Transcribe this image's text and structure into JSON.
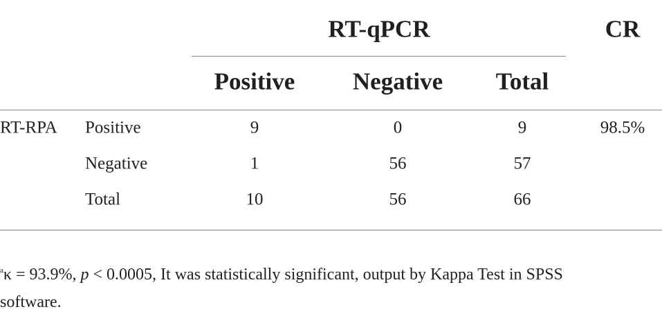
{
  "table": {
    "group_header": "RT-qPCR",
    "cr_header": "CR",
    "columns": [
      "Positive",
      "Negative",
      "Total"
    ],
    "rows": [
      {
        "group": "RT-RPA",
        "label": "Positive",
        "values": [
          9,
          0,
          9
        ],
        "cr": "98.5%"
      },
      {
        "label": "Negative",
        "values": [
          1,
          56,
          57
        ]
      },
      {
        "label": "Total",
        "values": [
          10,
          56,
          66
        ]
      }
    ]
  },
  "footnote": {
    "marker": "a",
    "parts": [
      "κ = 93.9%, ",
      "p",
      " < 0.0005, It was statistically significant, output by Kappa Test in SPSS software."
    ]
  }
}
